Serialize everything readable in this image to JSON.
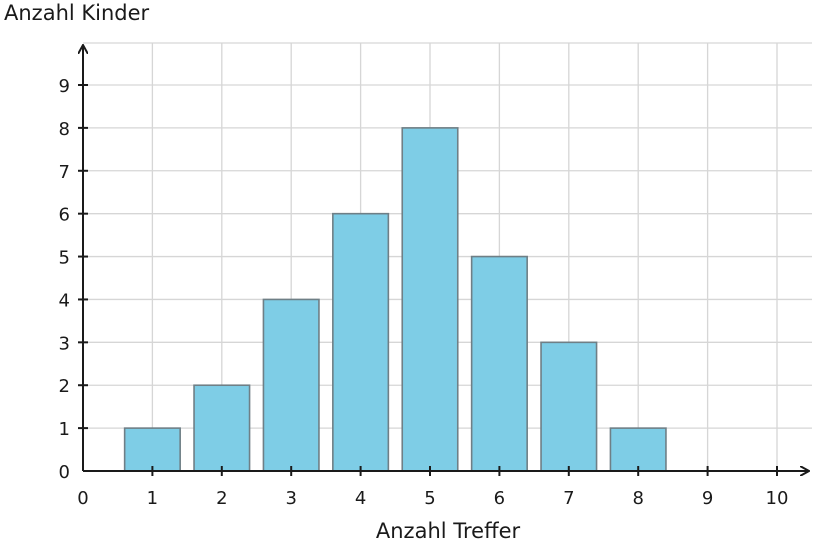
{
  "chart_data": {
    "type": "bar",
    "xlabel": "Anzahl Treffer",
    "ylabel": "Anzahl Kinder",
    "x": [
      1,
      2,
      3,
      4,
      5,
      6,
      7,
      8
    ],
    "values": [
      1,
      2,
      4,
      6,
      8,
      5,
      3,
      1
    ],
    "xlim": [
      0,
      10
    ],
    "ylim": [
      0,
      9
    ],
    "x_ticks": [
      0,
      1,
      2,
      3,
      4,
      5,
      6,
      7,
      8,
      9,
      10
    ],
    "y_ticks": [
      0,
      1,
      2,
      3,
      4,
      5,
      6,
      7,
      8,
      9
    ],
    "grid": true,
    "bar_color": "#7ecde6",
    "bar_edge_color": "#6f7f86",
    "axis_color": "#1a1a1a",
    "grid_color": "#d6d6d6"
  }
}
